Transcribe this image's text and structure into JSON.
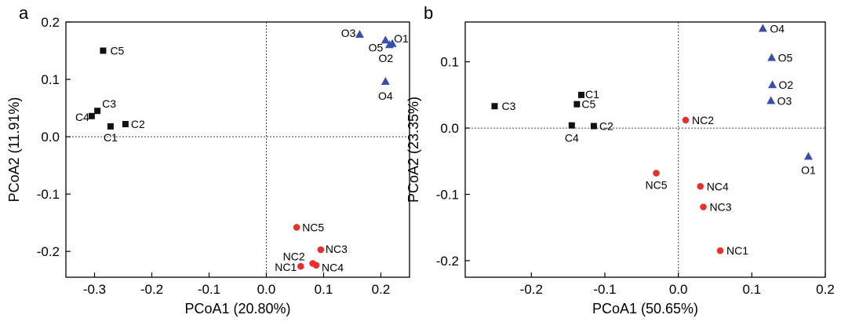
{
  "figure": {
    "panels": [
      "a",
      "b"
    ]
  },
  "chart_data": [
    {
      "panel": "a",
      "type": "scatter",
      "xlabel": "PCoA1 (20.80%)",
      "ylabel": "PCoA2 (11.91%)",
      "xlim": [
        -0.35,
        0.25
      ],
      "ylim": [
        -0.245,
        0.2
      ],
      "xticks": [
        -0.3,
        -0.2,
        -0.1,
        0.0,
        0.1,
        0.2
      ],
      "xtick_labels": [
        "-0.3",
        "-0.2",
        "-0.1",
        "0.0",
        "0.1",
        "0.2"
      ],
      "yticks": [
        -0.2,
        -0.1,
        0.0,
        0.1,
        0.2
      ],
      "ytick_labels": [
        "-0.2",
        "-0.1",
        "0.0",
        "0.1",
        "0.2"
      ],
      "reference_lines": {
        "x": 0,
        "y": 0,
        "style": "dotted"
      },
      "grid": false,
      "series": [
        {
          "marker": "square",
          "color": "#111111",
          "points": [
            {
              "label": "C5",
              "x": -0.285,
              "y": 0.15
            },
            {
              "label": "C3",
              "x": -0.295,
              "y": 0.045
            },
            {
              "label": "C4",
              "x": -0.305,
              "y": 0.036
            },
            {
              "label": "C2",
              "x": -0.246,
              "y": 0.022
            },
            {
              "label": "C1",
              "x": -0.272,
              "y": 0.018
            }
          ]
        },
        {
          "marker": "triangle",
          "color": "#3a50a8",
          "points": [
            {
              "label": "O3",
              "x": 0.163,
              "y": 0.178
            },
            {
              "label": "O5",
              "x": 0.208,
              "y": 0.168
            },
            {
              "label": "O1",
              "x": 0.22,
              "y": 0.162
            },
            {
              "label": "O2",
              "x": 0.215,
              "y": 0.16
            },
            {
              "label": "O4",
              "x": 0.208,
              "y": 0.096
            }
          ]
        },
        {
          "marker": "circle",
          "color": "#e8312d",
          "points": [
            {
              "label": "NC5",
              "x": 0.053,
              "y": -0.158
            },
            {
              "label": "NC3",
              "x": 0.095,
              "y": -0.197
            },
            {
              "label": "NC2",
              "x": 0.081,
              "y": -0.221
            },
            {
              "label": "NC4",
              "x": 0.087,
              "y": -0.224
            },
            {
              "label": "NC1",
              "x": 0.06,
              "y": -0.226
            }
          ]
        }
      ]
    },
    {
      "panel": "b",
      "type": "scatter",
      "xlabel": "PCoA1 (50.65%)",
      "ylabel": "PCoA2 (23.35%)",
      "xlim": [
        -0.29,
        0.2
      ],
      "ylim": [
        -0.225,
        0.16
      ],
      "xticks": [
        -0.2,
        -0.1,
        0.0,
        0.1,
        0.2
      ],
      "xtick_labels": [
        "-0.2",
        "-0.1",
        "0.0",
        "0.1",
        "0.2"
      ],
      "yticks": [
        -0.2,
        -0.1,
        0.0,
        0.1
      ],
      "ytick_labels": [
        "-0.2",
        "-0.1",
        "0.0",
        "0.1"
      ],
      "reference_lines": {
        "x": 0,
        "y": 0,
        "style": "dotted"
      },
      "grid": false,
      "series": [
        {
          "marker": "square",
          "color": "#111111",
          "points": [
            {
              "label": "C3",
              "x": -0.25,
              "y": 0.033
            },
            {
              "label": "C1",
              "x": -0.132,
              "y": 0.05
            },
            {
              "label": "C5",
              "x": -0.138,
              "y": 0.036
            },
            {
              "label": "C4",
              "x": -0.145,
              "y": 0.004
            },
            {
              "label": "C2",
              "x": -0.115,
              "y": 0.003
            }
          ]
        },
        {
          "marker": "triangle",
          "color": "#3a50a8",
          "points": [
            {
              "label": "O4",
              "x": 0.115,
              "y": 0.15
            },
            {
              "label": "O5",
              "x": 0.127,
              "y": 0.106
            },
            {
              "label": "O2",
              "x": 0.128,
              "y": 0.065
            },
            {
              "label": "O3",
              "x": 0.126,
              "y": 0.041
            },
            {
              "label": "O1",
              "x": 0.177,
              "y": -0.043
            }
          ]
        },
        {
          "marker": "circle",
          "color": "#e8312d",
          "points": [
            {
              "label": "NC2",
              "x": 0.01,
              "y": 0.012
            },
            {
              "label": "NC5",
              "x": -0.03,
              "y": -0.068
            },
            {
              "label": "NC4",
              "x": 0.03,
              "y": -0.088
            },
            {
              "label": "NC3",
              "x": 0.034,
              "y": -0.119
            },
            {
              "label": "NC1",
              "x": 0.057,
              "y": -0.185
            }
          ]
        }
      ]
    }
  ]
}
